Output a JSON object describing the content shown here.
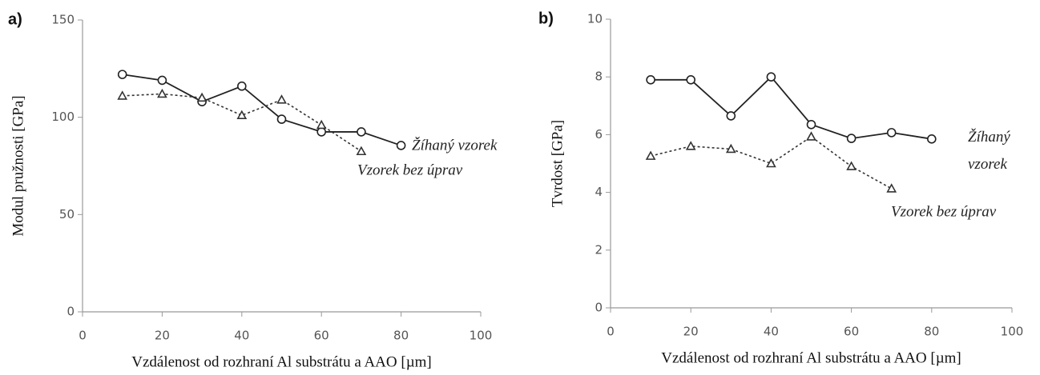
{
  "chart_data": [
    {
      "type": "line",
      "panel_label": "a)",
      "xlabel": "Vzdálenost od rozhraní Al substrátu a AAO [µm]",
      "ylabel": "Modul pružnosti [GPa]",
      "x": [
        10,
        20,
        30,
        40,
        50,
        60,
        70,
        80
      ],
      "series": [
        {
          "name": "Žíhaný vzorek",
          "color": "#222222",
          "marker": "circle",
          "style": "solid",
          "values": [
            122,
            119,
            108,
            116,
            99,
            92.5,
            92.5,
            85.5
          ]
        },
        {
          "name": "Vzorek bez úprav",
          "color": "#333333",
          "marker": "triangle",
          "style": "dotted",
          "values": [
            111,
            112,
            110,
            101,
            109,
            96,
            82.5,
            null
          ]
        }
      ],
      "xlim": [
        0,
        100
      ],
      "xticks": [
        0,
        20,
        40,
        60,
        80,
        100
      ],
      "ylim": [
        0,
        150
      ],
      "yticks": [
        0,
        50,
        100,
        150
      ]
    },
    {
      "type": "line",
      "panel_label": "b)",
      "xlabel": "Vzdálenost od rozhraní Al substrátu a AAO [µm]",
      "ylabel": "Tvrdost [GPa]",
      "x": [
        10,
        20,
        30,
        40,
        50,
        60,
        70,
        80
      ],
      "series": [
        {
          "name": [
            "Žíhaný",
            "vzorek"
          ],
          "color": "#222222",
          "marker": "circle",
          "style": "solid",
          "values": [
            7.9,
            7.9,
            6.65,
            8.0,
            6.35,
            5.87,
            6.07,
            5.85
          ]
        },
        {
          "name": "Vzorek bez úprav",
          "color": "#333333",
          "marker": "triangle",
          "style": "dotted",
          "values": [
            5.26,
            5.6,
            5.5,
            5.0,
            5.93,
            4.9,
            4.13,
            null
          ]
        }
      ],
      "xlim": [
        0,
        100
      ],
      "xticks": [
        0,
        20,
        40,
        60,
        80,
        100
      ],
      "ylim": [
        0,
        10
      ],
      "yticks": [
        0,
        2,
        4,
        6,
        8,
        10
      ]
    }
  ]
}
